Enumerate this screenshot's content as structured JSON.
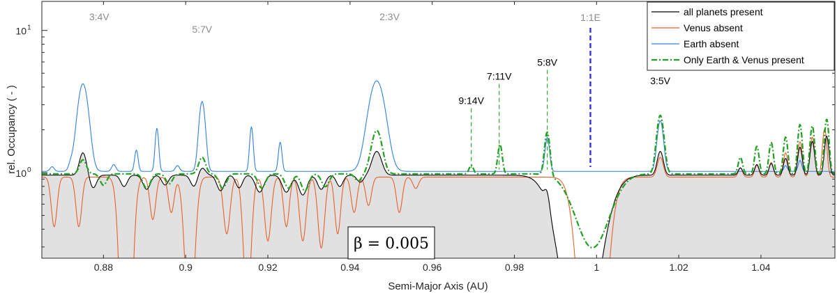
{
  "chart_data": {
    "type": "line",
    "title": "",
    "xlabel": "Semi-Major Axis (AU)",
    "ylabel": "rel. Occupancy ( - )",
    "xlim": [
      0.865,
      1.058
    ],
    "ylim": [
      0.25,
      16
    ],
    "yscale": "log",
    "grid": false,
    "legend_position": "top-right",
    "x_ticks": [
      0.88,
      0.9,
      0.92,
      0.94,
      0.96,
      0.98,
      1,
      1.02,
      1.04
    ],
    "x_tick_labels": [
      "0.88",
      "0.9",
      "0.92",
      "0.94",
      "0.96",
      "0.98",
      "1",
      "1.02",
      "1.04"
    ],
    "y_ticks": [
      {
        "value": 1,
        "base": "10",
        "exp": "0"
      },
      {
        "value": 10,
        "base": "10",
        "exp": "1"
      }
    ],
    "annotation_box": "β = 0.005",
    "resonances": [
      {
        "label": "3:4V",
        "x": 0.8755,
        "color": "#8c8c8c",
        "line": false
      },
      {
        "label": "5:7V",
        "x": 0.904,
        "color": "#8c8c8c",
        "line": false
      },
      {
        "label": "2:3V",
        "x": 0.9465,
        "color": "#8c8c8c",
        "line": false
      },
      {
        "label": "1:1E",
        "x": 0.9985,
        "color": "#8c8c8c",
        "line": true,
        "line_color": "#3333dd",
        "line_top": 12
      },
      {
        "label": "9:14V",
        "x": 0.9695,
        "color": "#000000",
        "line": true,
        "line_color": "#33aa33",
        "line_top": 2.9
      },
      {
        "label": "7:11V",
        "x": 0.9763,
        "color": "#000000",
        "line": true,
        "line_color": "#33aa33",
        "line_top": 4.3
      },
      {
        "label": "5:8V",
        "x": 0.988,
        "color": "#000000",
        "line": true,
        "line_color": "#33aa33",
        "line_top": 5.4
      },
      {
        "label": "3:5V",
        "x": 1.0155,
        "color": "#000000",
        "line": false
      }
    ],
    "series": [
      {
        "name": "all planets present",
        "color": "#000000",
        "style": "solid",
        "filled": true,
        "base": 0.96,
        "dips": [
          {
            "x": 0.8775,
            "a": -0.09,
            "w": 0.0008
          },
          {
            "x": 0.885,
            "a": -0.08,
            "w": 0.0008
          },
          {
            "x": 0.8905,
            "a": -0.1,
            "w": 0.0009
          },
          {
            "x": 0.895,
            "a": -0.07,
            "w": 0.0008
          },
          {
            "x": 0.902,
            "a": -0.08,
            "w": 0.0008
          },
          {
            "x": 0.9085,
            "a": -0.11,
            "w": 0.0009
          },
          {
            "x": 0.913,
            "a": -0.09,
            "w": 0.0008
          },
          {
            "x": 0.918,
            "a": -0.12,
            "w": 0.001
          },
          {
            "x": 0.9245,
            "a": -0.12,
            "w": 0.001
          },
          {
            "x": 0.9285,
            "a": -0.14,
            "w": 0.001
          },
          {
            "x": 0.933,
            "a": -0.1,
            "w": 0.0009
          },
          {
            "x": 0.9375,
            "a": -0.08,
            "w": 0.0008
          },
          {
            "x": 0.9425,
            "a": -0.05,
            "w": 0.0008
          },
          {
            "x": 0.996,
            "a": -1.35,
            "w": 0.0042
          }
        ],
        "peaks": [
          {
            "x": 0.875,
            "a": 0.42,
            "w": 0.0008
          },
          {
            "x": 0.904,
            "a": 0.12,
            "w": 0.0008
          },
          {
            "x": 0.9465,
            "a": 0.45,
            "w": 0.0011
          },
          {
            "x": 0.988,
            "a": 0.25,
            "w": 0.0006
          },
          {
            "x": 1.0155,
            "a": 0.45,
            "w": 0.0007
          },
          {
            "x": 1.035,
            "a": 0.12,
            "w": 0.0005
          },
          {
            "x": 1.039,
            "a": 0.18,
            "w": 0.0005
          },
          {
            "x": 1.0425,
            "a": 0.2,
            "w": 0.0005
          },
          {
            "x": 1.046,
            "a": 0.3,
            "w": 0.0005
          },
          {
            "x": 1.0495,
            "a": 0.55,
            "w": 0.0005
          },
          {
            "x": 1.0525,
            "a": 0.7,
            "w": 0.0005
          },
          {
            "x": 1.056,
            "a": 0.85,
            "w": 0.0005
          }
        ]
      },
      {
        "name": "Venus absent",
        "color": "#e8602a",
        "style": "solid",
        "filled": false,
        "base": 0.93,
        "dips": [
          {
            "x": 0.868,
            "a": -0.35,
            "w": 0.0007
          },
          {
            "x": 0.874,
            "a": -0.35,
            "w": 0.0007
          },
          {
            "x": 0.8855,
            "a": -2.0,
            "w": 0.0012
          },
          {
            "x": 0.892,
            "a": -0.3,
            "w": 0.0007
          },
          {
            "x": 0.8965,
            "a": -0.25,
            "w": 0.0007
          },
          {
            "x": 0.901,
            "a": -1.1,
            "w": 0.0011
          },
          {
            "x": 0.91,
            "a": -0.4,
            "w": 0.0008
          },
          {
            "x": 0.915,
            "a": -0.9,
            "w": 0.0009
          },
          {
            "x": 0.92,
            "a": -0.45,
            "w": 0.0008
          },
          {
            "x": 0.9245,
            "a": -0.35,
            "w": 0.0007
          },
          {
            "x": 0.9285,
            "a": -0.45,
            "w": 0.0008
          },
          {
            "x": 0.933,
            "a": -0.5,
            "w": 0.0008
          },
          {
            "x": 0.937,
            "a": -0.4,
            "w": 0.0007
          },
          {
            "x": 0.941,
            "a": -0.25,
            "w": 0.0007
          },
          {
            "x": 0.9445,
            "a": -0.2,
            "w": 0.0007
          },
          {
            "x": 0.952,
            "a": -0.25,
            "w": 0.0007
          },
          {
            "x": 0.956,
            "a": -0.08,
            "w": 0.0007
          },
          {
            "x": 0.999,
            "a": -2.2,
            "w": 0.0026
          }
        ],
        "peaks": [
          {
            "x": 1.0155,
            "a": 0.35,
            "w": 0.0007
          },
          {
            "x": 1.035,
            "a": 0.15,
            "w": 0.0005
          },
          {
            "x": 1.039,
            "a": 0.2,
            "w": 0.0005
          },
          {
            "x": 1.0425,
            "a": 0.25,
            "w": 0.0005
          },
          {
            "x": 1.046,
            "a": 0.45,
            "w": 0.0005
          },
          {
            "x": 1.0495,
            "a": 0.72,
            "w": 0.0005
          },
          {
            "x": 1.0525,
            "a": 0.85,
            "w": 0.0005
          },
          {
            "x": 1.0555,
            "a": 1.1,
            "w": 0.0005
          }
        ]
      },
      {
        "name": "Earth absent",
        "color": "#2f80e0",
        "style": "solid",
        "filled": false,
        "base": 1.02,
        "dips": [],
        "peaks": [
          {
            "x": 0.8675,
            "a": 0.08,
            "w": 0.0005
          },
          {
            "x": 0.872,
            "a": 0.1,
            "w": 0.0005
          },
          {
            "x": 0.875,
            "a": 3.2,
            "w": 0.0012
          },
          {
            "x": 0.8825,
            "a": 0.12,
            "w": 0.0005
          },
          {
            "x": 0.888,
            "a": 0.42,
            "w": 0.0004
          },
          {
            "x": 0.893,
            "a": 1.03,
            "w": 0.0004
          },
          {
            "x": 0.898,
            "a": 0.1,
            "w": 0.0005
          },
          {
            "x": 0.904,
            "a": 2.15,
            "w": 0.0007
          },
          {
            "x": 0.916,
            "a": 1.08,
            "w": 0.0004
          },
          {
            "x": 0.923,
            "a": 0.62,
            "w": 0.0004
          },
          {
            "x": 0.9465,
            "a": 3.4,
            "w": 0.0018
          },
          {
            "x": 0.988,
            "a": 0.75,
            "w": 0.0005
          },
          {
            "x": 1.0155,
            "a": 1.3,
            "w": 0.0007
          },
          {
            "x": 1.046,
            "a": 0.1,
            "w": 0.0004
          },
          {
            "x": 1.0495,
            "a": 0.2,
            "w": 0.0004
          }
        ]
      },
      {
        "name": "Only Earth & Venus present",
        "color": "#22a022",
        "style": "dashdot",
        "filled": false,
        "base": 0.98,
        "dips": [
          {
            "x": 0.88,
            "a": -0.08,
            "w": 0.0008
          },
          {
            "x": 0.8905,
            "a": -0.1,
            "w": 0.0009
          },
          {
            "x": 0.896,
            "a": -0.07,
            "w": 0.0008
          },
          {
            "x": 0.909,
            "a": -0.1,
            "w": 0.0009
          },
          {
            "x": 0.9185,
            "a": -0.1,
            "w": 0.0009
          },
          {
            "x": 0.925,
            "a": -0.1,
            "w": 0.0009
          },
          {
            "x": 0.929,
            "a": -0.12,
            "w": 0.0009
          },
          {
            "x": 0.934,
            "a": -0.09,
            "w": 0.0009
          },
          {
            "x": 0.942,
            "a": -0.05,
            "w": 0.0008
          },
          {
            "x": 0.999,
            "a": -0.52,
            "w": 0.004
          }
        ],
        "peaks": [
          {
            "x": 0.875,
            "a": 0.25,
            "w": 0.0008
          },
          {
            "x": 0.904,
            "a": 0.3,
            "w": 0.0008
          },
          {
            "x": 0.9465,
            "a": 1.0,
            "w": 0.0012
          },
          {
            "x": 0.9695,
            "a": 0.15,
            "w": 0.0005
          },
          {
            "x": 0.9765,
            "a": 0.6,
            "w": 0.0005
          },
          {
            "x": 0.988,
            "a": 1.0,
            "w": 0.0006
          },
          {
            "x": 1.0155,
            "a": 1.55,
            "w": 0.0008
          },
          {
            "x": 1.035,
            "a": 0.3,
            "w": 0.0005
          },
          {
            "x": 1.039,
            "a": 0.55,
            "w": 0.0005
          },
          {
            "x": 1.0425,
            "a": 0.65,
            "w": 0.0005
          },
          {
            "x": 1.046,
            "a": 0.8,
            "w": 0.0005
          },
          {
            "x": 1.0495,
            "a": 1.2,
            "w": 0.0005
          },
          {
            "x": 1.0525,
            "a": 1.15,
            "w": 0.0005
          },
          {
            "x": 1.056,
            "a": 1.4,
            "w": 0.0005
          }
        ]
      }
    ]
  }
}
